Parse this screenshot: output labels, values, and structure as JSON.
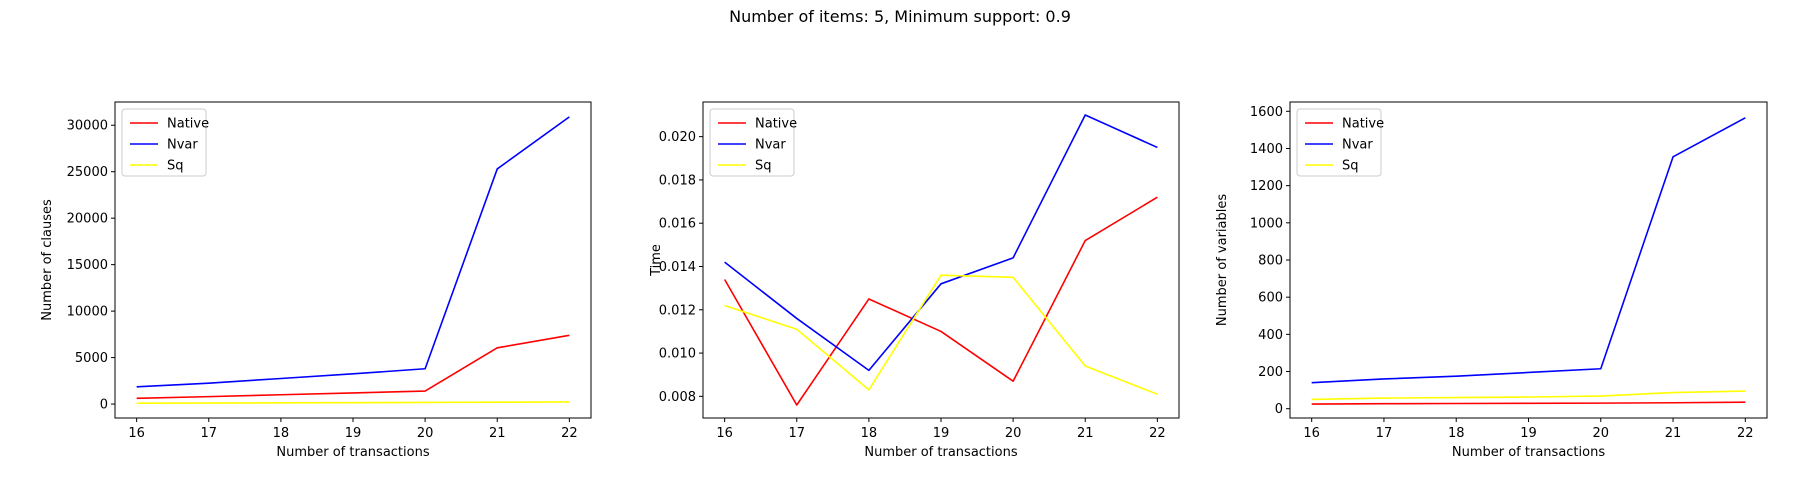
{
  "figure": {
    "suptitle": "Number of items: 5, Minimum support: 0.9"
  },
  "chart_data": [
    {
      "type": "line",
      "title": "",
      "xlabel": "Number of transactions",
      "ylabel": "Number of clauses",
      "x": [
        16,
        17,
        18,
        19,
        20,
        21,
        22
      ],
      "xlim": [
        15.7,
        22.3
      ],
      "ylim": [
        -1500,
        32500
      ],
      "xticks": [
        16,
        17,
        18,
        19,
        20,
        21,
        22
      ],
      "yticks": [
        0,
        5000,
        10000,
        15000,
        20000,
        25000,
        30000
      ],
      "grid": false,
      "legend": "top-left",
      "series": [
        {
          "name": "Native",
          "color": "#ff0000",
          "values": [
            620,
            800,
            1000,
            1200,
            1400,
            6050,
            7400
          ]
        },
        {
          "name": "Nvar",
          "color": "#0000ff",
          "values": [
            1850,
            2250,
            2750,
            3250,
            3800,
            25300,
            30900
          ]
        },
        {
          "name": "Sq",
          "color": "#ffff00",
          "values": [
            90,
            110,
            130,
            150,
            170,
            200,
            230
          ]
        }
      ]
    },
    {
      "type": "line",
      "title": "",
      "xlabel": "Number of transactions",
      "ylabel": "Time",
      "x": [
        16,
        17,
        18,
        19,
        20,
        21,
        22
      ],
      "xlim": [
        15.7,
        22.3
      ],
      "ylim": [
        0.007,
        0.0216
      ],
      "xticks": [
        16,
        17,
        18,
        19,
        20,
        21,
        22
      ],
      "yticks": [
        0.008,
        0.01,
        0.012,
        0.014,
        0.016,
        0.018,
        0.02
      ],
      "ytick_labels": [
        "0.008",
        "0.010",
        "0.012",
        "0.014",
        "0.016",
        "0.018",
        "0.020"
      ],
      "grid": false,
      "legend": "top-left",
      "series": [
        {
          "name": "Native",
          "color": "#ff0000",
          "values": [
            0.0134,
            0.0076,
            0.0125,
            0.011,
            0.0087,
            0.0152,
            0.0172
          ]
        },
        {
          "name": "Nvar",
          "color": "#0000ff",
          "values": [
            0.0142,
            0.0116,
            0.0092,
            0.0132,
            0.0144,
            0.021,
            0.0195
          ]
        },
        {
          "name": "Sq",
          "color": "#ffff00",
          "values": [
            0.0122,
            0.0111,
            0.0083,
            0.0136,
            0.0135,
            0.0094,
            0.0081
          ]
        }
      ]
    },
    {
      "type": "line",
      "title": "",
      "xlabel": "Number of transactions",
      "ylabel": "Number of variables",
      "x": [
        16,
        17,
        18,
        19,
        20,
        21,
        22
      ],
      "xlim": [
        15.7,
        22.3
      ],
      "ylim": [
        -50,
        1650
      ],
      "xticks": [
        16,
        17,
        18,
        19,
        20,
        21,
        22
      ],
      "yticks": [
        0,
        200,
        400,
        600,
        800,
        1000,
        1200,
        1400,
        1600
      ],
      "grid": false,
      "legend": "top-left",
      "series": [
        {
          "name": "Native",
          "color": "#ff0000",
          "values": [
            25,
            27,
            28,
            29,
            30,
            32,
            35
          ]
        },
        {
          "name": "Nvar",
          "color": "#0000ff",
          "values": [
            140,
            160,
            175,
            195,
            215,
            1355,
            1565
          ]
        },
        {
          "name": "Sq",
          "color": "#ffff00",
          "values": [
            50,
            57,
            60,
            63,
            68,
            87,
            95
          ]
        }
      ]
    }
  ]
}
